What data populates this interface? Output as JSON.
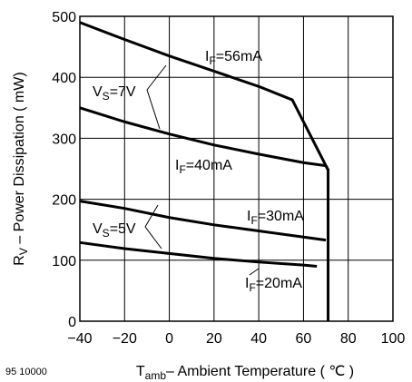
{
  "chart_data": {
    "type": "line",
    "xlabel": {
      "main": "T",
      "sub": "amb",
      "rest": "– Ambient Temperature ( ℃ )"
    },
    "ylabel": {
      "main": "R",
      "sub": "V",
      "rest": " – Power Dissipation ( mW)"
    },
    "xlim": [
      -40,
      100
    ],
    "ylim": [
      0,
      500
    ],
    "xticks": [
      -40,
      -20,
      0,
      20,
      40,
      60,
      80,
      100
    ],
    "yticks": [
      0,
      100,
      200,
      300,
      400,
      500
    ],
    "grid": true,
    "figure_id": "95 10000",
    "series": [
      {
        "points": [
          [
            -40,
            490
          ],
          [
            -20,
            462
          ],
          [
            0,
            435
          ],
          [
            20,
            410
          ],
          [
            40,
            385
          ],
          [
            55,
            363
          ],
          [
            71,
            248
          ]
        ]
      },
      {
        "points": [
          [
            -40,
            350
          ],
          [
            -20,
            327
          ],
          [
            0,
            307
          ],
          [
            20,
            289
          ],
          [
            40,
            274
          ],
          [
            60,
            260
          ],
          [
            70,
            255
          ],
          [
            71,
            248
          ]
        ]
      },
      {
        "points": [
          [
            -40,
            197
          ],
          [
            -20,
            185
          ],
          [
            0,
            170
          ],
          [
            20,
            158
          ],
          [
            40,
            148
          ],
          [
            60,
            138
          ],
          [
            70,
            133
          ]
        ]
      },
      {
        "points": [
          [
            -40,
            129
          ],
          [
            -20,
            119
          ],
          [
            0,
            111
          ],
          [
            20,
            103
          ],
          [
            40,
            97
          ],
          [
            60,
            92
          ],
          [
            66,
            90
          ]
        ]
      },
      {
        "points": [
          [
            71,
            250
          ],
          [
            71,
            0
          ]
        ]
      }
    ],
    "annotations": [
      {
        "parts": [
          [
            "I",
            ""
          ],
          [
            "F",
            "sub"
          ],
          [
            "=56mA",
            ""
          ]
        ]
      },
      {
        "parts": [
          [
            "V",
            ""
          ],
          [
            "S",
            "sub"
          ],
          [
            "=7V",
            ""
          ]
        ]
      },
      {
        "parts": [
          [
            "I",
            ""
          ],
          [
            "F",
            "sub"
          ],
          [
            "=40mA",
            ""
          ]
        ]
      },
      {
        "parts": [
          [
            "I",
            ""
          ],
          [
            "F",
            "sub"
          ],
          [
            "=30mA",
            ""
          ]
        ]
      },
      {
        "parts": [
          [
            "V",
            ""
          ],
          [
            "S",
            "sub"
          ],
          [
            "=5V",
            ""
          ]
        ]
      },
      {
        "parts": [
          [
            "I",
            ""
          ],
          [
            "F",
            "sub"
          ],
          [
            "=20mA",
            ""
          ]
        ]
      }
    ]
  }
}
